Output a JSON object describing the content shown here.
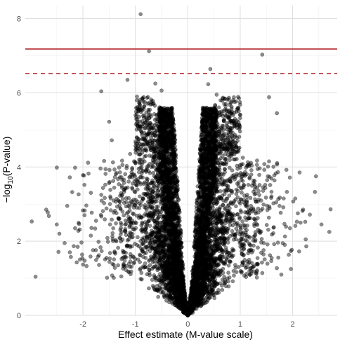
{
  "chart_data": {
    "type": "scatter",
    "title": "",
    "xlabel": "Effect estimate (M-value scale)",
    "ylabel": {
      "prefix": "−log",
      "subscript": "10",
      "suffix": "(P-value)"
    },
    "xlim": [
      -3.1,
      2.85
    ],
    "ylim": [
      0,
      8.35
    ],
    "x_ticks": [
      -2,
      -1,
      0,
      1,
      2
    ],
    "y_ticks": [
      0,
      2,
      4,
      6,
      8
    ],
    "grid": true,
    "legend": "none",
    "point_color": "#000000",
    "point_opacity": 0.45,
    "reference_lines": [
      {
        "style": "solid",
        "y": 7.18,
        "color": "#b2272d"
      },
      {
        "style": "dashed",
        "y": 6.52,
        "color": "#b2272d"
      }
    ],
    "notable_points": [
      {
        "x": -0.9,
        "y": 8.12
      },
      {
        "x": 1.42,
        "y": 7.03
      },
      {
        "x": -0.74,
        "y": 7.12
      },
      {
        "x": 0.43,
        "y": 6.64
      },
      {
        "x": -0.62,
        "y": 6.25
      },
      {
        "x": 0.39,
        "y": 6.23
      },
      {
        "x": -1.65,
        "y": 6.04
      },
      {
        "x": -1.15,
        "y": 6.35
      },
      {
        "x": 0.55,
        "y": 5.95
      },
      {
        "x": -0.5,
        "y": 6.06
      },
      {
        "x": 1.55,
        "y": 5.88
      },
      {
        "x": 1.7,
        "y": 5.45
      },
      {
        "x": -1.5,
        "y": 5.22
      },
      {
        "x": -1.45,
        "y": 4.72
      },
      {
        "x": -2.15,
        "y": 3.98
      },
      {
        "x": -2.0,
        "y": 3.78
      },
      {
        "x": -2.25,
        "y": 3.72
      },
      {
        "x": 1.05,
        "y": 4.25
      },
      {
        "x": 1.55,
        "y": 4.15
      },
      {
        "x": -2.7,
        "y": 2.85
      },
      {
        "x": -2.65,
        "y": 2.68
      },
      {
        "x": -2.3,
        "y": 2.95
      },
      {
        "x": -2.5,
        "y": 2.45
      },
      {
        "x": -2.15,
        "y": 2.35
      },
      {
        "x": -2.45,
        "y": 2.2
      },
      {
        "x": -2.35,
        "y": 1.95
      },
      {
        "x": -2.25,
        "y": 1.7
      },
      {
        "x": -2.1,
        "y": 1.85
      },
      {
        "x": 2.1,
        "y": 2.75
      },
      {
        "x": 2.15,
        "y": 2.5
      },
      {
        "x": 2.25,
        "y": 2.05
      },
      {
        "x": 2.2,
        "y": 2.85
      },
      {
        "x": 2.05,
        "y": 3.15
      },
      {
        "x": 1.95,
        "y": 2.35
      },
      {
        "x": 2.7,
        "y": 2.25
      },
      {
        "x": 2.55,
        "y": 2.45
      },
      {
        "x": 1.75,
        "y": 2.95
      },
      {
        "x": 1.85,
        "y": 1.9
      },
      {
        "x": 1.6,
        "y": 1.55
      },
      {
        "x": 1.45,
        "y": 1.95
      },
      {
        "x": -1.65,
        "y": 3.25
      },
      {
        "x": -1.75,
        "y": 2.55
      },
      {
        "x": -1.85,
        "y": 2.15
      },
      {
        "x": -1.55,
        "y": 1.55
      },
      {
        "x": 1.35,
        "y": 3.35
      },
      {
        "x": 1.25,
        "y": 2.85
      },
      {
        "x": -1.25,
        "y": 3.65
      },
      {
        "x": -1.1,
        "y": 4.35
      },
      {
        "x": 0.85,
        "y": 4.55
      },
      {
        "x": 0.95,
        "y": 3.95
      }
    ],
    "cloud": {
      "n_points": 5200,
      "center_x": 0,
      "x_sd": 0.55,
      "dense_core_x_range": [
        -0.55,
        0.55
      ],
      "max_y_near_center": 6.0
    }
  }
}
